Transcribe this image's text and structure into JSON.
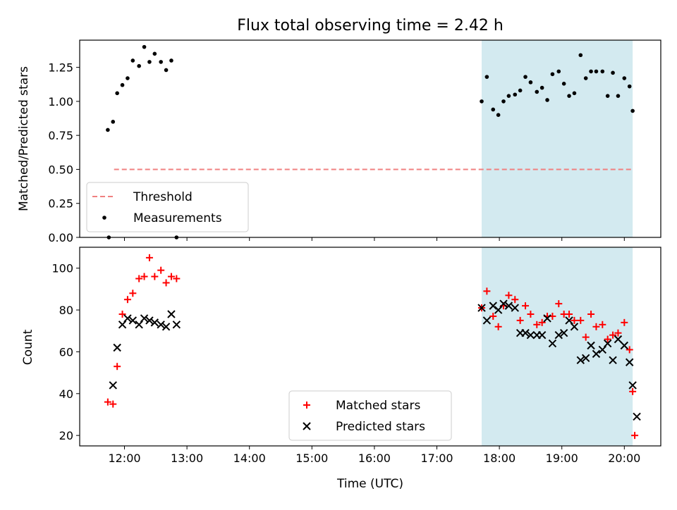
{
  "chart_data": [
    {
      "type": "scatter",
      "title": "Flux total observing time = 2.42 h",
      "xlabel": "",
      "ylabel": "Matched/Predicted stars",
      "ylim": [
        0,
        1.45
      ],
      "xlim": [
        "11:17",
        "20:35"
      ],
      "xticks": [
        "12:00",
        "13:00",
        "14:00",
        "15:00",
        "16:00",
        "17:00",
        "18:00",
        "19:00",
        "20:00"
      ],
      "x_ticklabels_visible": false,
      "yticks": [
        "0.00",
        "0.25",
        "0.50",
        "0.75",
        "1.00",
        "1.25"
      ],
      "legend_position": "lower-left",
      "shaded_region": {
        "x_start": "17:43",
        "x_end": "20:08",
        "color": "#d3eaf0"
      },
      "series": [
        {
          "name": "Threshold",
          "type": "line",
          "style": "dashed",
          "color": "#f08080",
          "x": [
            "11:50",
            "20:08"
          ],
          "y": [
            0.5,
            0.5
          ]
        },
        {
          "name": "Measurements",
          "type": "scatter",
          "marker": "dot",
          "color": "#000000",
          "x": [
            "11:44",
            "11:49",
            "11:53",
            "11:58",
            "12:03",
            "12:08",
            "12:14",
            "12:19",
            "12:24",
            "12:29",
            "12:35",
            "12:40",
            "12:45",
            "12:50",
            "11:45",
            "17:43",
            "17:48",
            "17:54",
            "17:59",
            "18:04",
            "18:09",
            "18:15",
            "18:20",
            "18:25",
            "18:30",
            "18:36",
            "18:41",
            "18:46",
            "18:51",
            "18:57",
            "19:02",
            "19:07",
            "19:12",
            "19:18",
            "19:23",
            "19:28",
            "19:33",
            "19:39",
            "19:44",
            "19:49",
            "19:54",
            "20:00",
            "20:05",
            "20:08"
          ],
          "y": [
            0.79,
            0.85,
            1.06,
            1.12,
            1.17,
            1.3,
            1.26,
            1.4,
            1.29,
            1.35,
            1.29,
            1.23,
            1.3,
            0.0,
            0.0,
            1.0,
            1.18,
            0.94,
            0.9,
            1.0,
            1.04,
            1.05,
            1.08,
            1.18,
            1.14,
            1.07,
            1.1,
            1.01,
            1.2,
            1.22,
            1.13,
            1.04,
            1.06,
            1.34,
            1.17,
            1.22,
            1.22,
            1.22,
            1.04,
            1.21,
            1.04,
            1.17,
            1.11,
            0.93
          ]
        }
      ]
    },
    {
      "type": "scatter",
      "title": "",
      "xlabel": "Time (UTC)",
      "ylabel": "Count",
      "ylim": [
        15,
        110
      ],
      "xlim": [
        "11:17",
        "20:35"
      ],
      "xticks": [
        "12:00",
        "13:00",
        "14:00",
        "15:00",
        "16:00",
        "17:00",
        "18:00",
        "19:00",
        "20:00"
      ],
      "yticks": [
        "20",
        "40",
        "60",
        "80",
        "100"
      ],
      "legend_position": "lower-center",
      "shaded_region": {
        "x_start": "17:43",
        "x_end": "20:08",
        "color": "#d3eaf0"
      },
      "series": [
        {
          "name": "Matched stars",
          "marker": "plus",
          "color": "#ff0000",
          "x": [
            "11:44",
            "11:49",
            "11:53",
            "11:58",
            "12:03",
            "12:08",
            "12:14",
            "12:19",
            "12:24",
            "12:29",
            "12:35",
            "12:40",
            "12:45",
            "12:50",
            "17:43",
            "17:48",
            "17:54",
            "17:59",
            "18:04",
            "18:09",
            "18:15",
            "18:20",
            "18:25",
            "18:30",
            "18:36",
            "18:41",
            "18:46",
            "18:51",
            "18:57",
            "19:02",
            "19:07",
            "19:12",
            "19:18",
            "19:23",
            "19:28",
            "19:33",
            "19:39",
            "19:44",
            "19:49",
            "19:54",
            "20:00",
            "20:05",
            "20:08",
            "20:10"
          ],
          "y": [
            36,
            35,
            53,
            78,
            85,
            88,
            95,
            96,
            105,
            96,
            99,
            93,
            96,
            95,
            81,
            89,
            77,
            72,
            82,
            87,
            85,
            75,
            82,
            78,
            73,
            74,
            77,
            77,
            83,
            78,
            78,
            75,
            75,
            67,
            78,
            72,
            73,
            66,
            68,
            69,
            74,
            61,
            41,
            20
          ]
        },
        {
          "name": "Predicted stars",
          "marker": "x",
          "color": "#000000",
          "x": [
            "11:49",
            "11:53",
            "11:58",
            "12:03",
            "12:08",
            "12:14",
            "12:19",
            "12:24",
            "12:29",
            "12:35",
            "12:40",
            "12:45",
            "12:50",
            "17:43",
            "17:48",
            "17:54",
            "17:59",
            "18:04",
            "18:09",
            "18:15",
            "18:20",
            "18:25",
            "18:30",
            "18:36",
            "18:41",
            "18:46",
            "18:51",
            "18:57",
            "19:02",
            "19:07",
            "19:12",
            "19:18",
            "19:23",
            "19:28",
            "19:33",
            "19:39",
            "19:44",
            "19:49",
            "19:54",
            "20:00",
            "20:05",
            "20:08",
            "20:12"
          ],
          "y": [
            44,
            62,
            73,
            76,
            75,
            73,
            76,
            75,
            74,
            73,
            72,
            78,
            73,
            81,
            75,
            82,
            80,
            83,
            82,
            81,
            69,
            69,
            68,
            68,
            68,
            76,
            64,
            68,
            69,
            75,
            72,
            56,
            57,
            63,
            59,
            61,
            64,
            56,
            66,
            63,
            55,
            44,
            29
          ]
        }
      ]
    }
  ]
}
